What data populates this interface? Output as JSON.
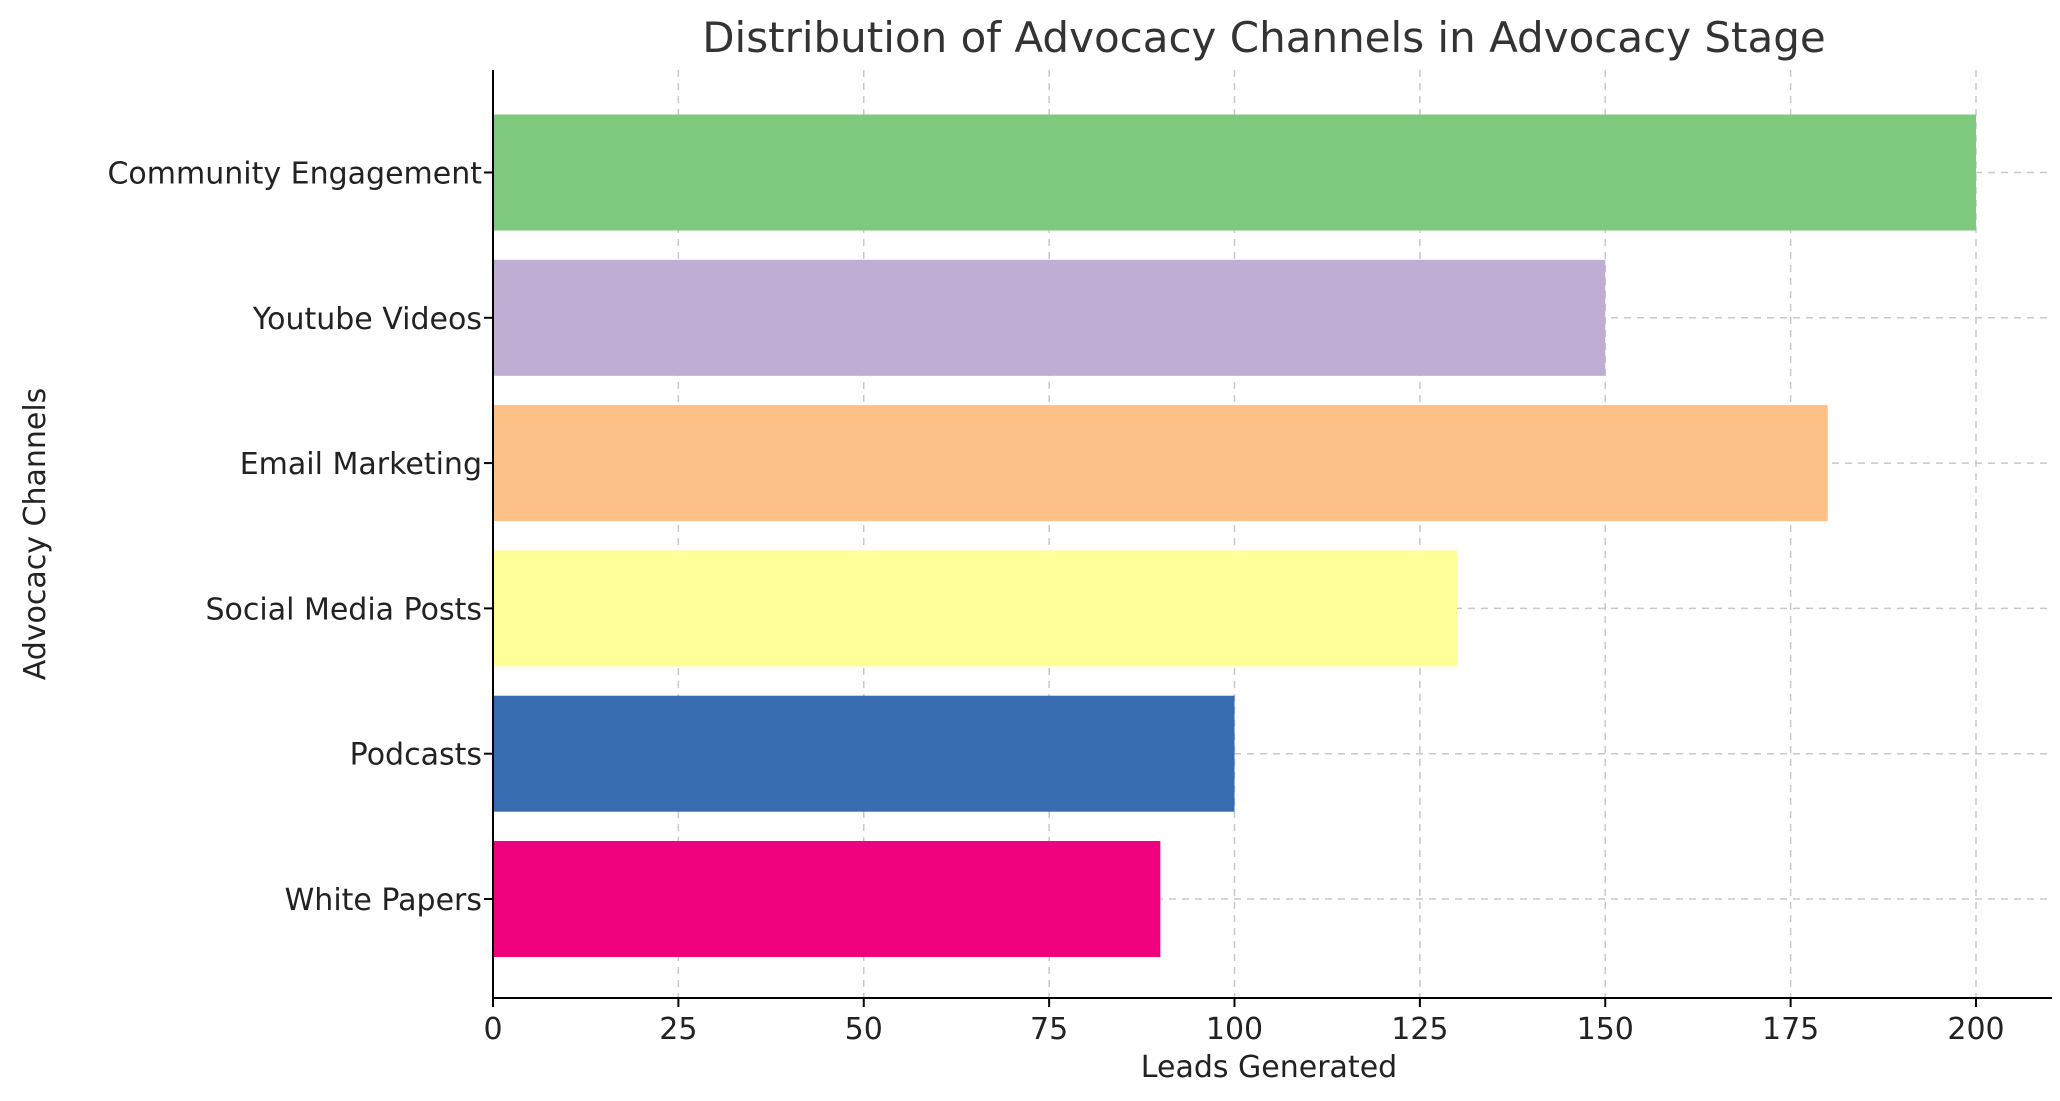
{
  "chart_data": {
    "type": "bar",
    "orientation": "horizontal",
    "title": "Distribution of Advocacy Channels in Advocacy Stage",
    "xlabel": "Leads Generated",
    "ylabel": "Advocacy Channels",
    "categories": [
      "White Papers",
      "Podcasts",
      "Social Media Posts",
      "Email Marketing",
      "Youtube Videos",
      "Community Engagement"
    ],
    "values": [
      90,
      100,
      130,
      180,
      150,
      200
    ],
    "colors": [
      "#f0027f",
      "#386cb0",
      "#ffff99",
      "#fdc086",
      "#beaed4",
      "#7fc97f"
    ],
    "xlim": [
      0,
      210
    ],
    "xticks": [
      0,
      25,
      50,
      75,
      100,
      125,
      150,
      175,
      200
    ],
    "grid": true
  }
}
